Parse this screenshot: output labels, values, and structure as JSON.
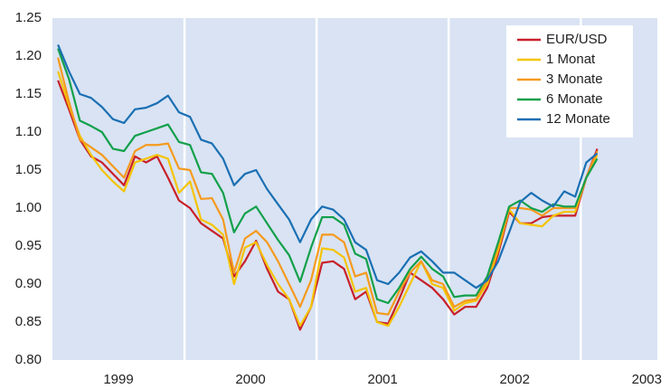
{
  "chart_data": {
    "type": "line",
    "x": [
      1999.042,
      1999.125,
      1999.208,
      1999.292,
      1999.375,
      1999.458,
      1999.542,
      1999.625,
      1999.708,
      1999.792,
      1999.875,
      1999.958,
      2000.042,
      2000.125,
      2000.208,
      2000.292,
      2000.375,
      2000.458,
      2000.542,
      2000.625,
      2000.708,
      2000.792,
      2000.875,
      2000.958,
      2001.042,
      2001.125,
      2001.208,
      2001.292,
      2001.375,
      2001.458,
      2001.542,
      2001.625,
      2001.708,
      2001.792,
      2001.875,
      2001.958,
      2002.042,
      2002.125,
      2002.208,
      2002.292,
      2002.375,
      2002.458,
      2002.542,
      2002.625,
      2002.708,
      2002.792,
      2002.875,
      2002.958,
      2003.042,
      2003.125
    ],
    "series": [
      {
        "name": "EUR/USD",
        "color": "#c8202a",
        "values": [
          1.168,
          1.13,
          1.09,
          1.068,
          1.06,
          1.045,
          1.03,
          1.068,
          1.06,
          1.068,
          1.04,
          1.01,
          1.0,
          0.98,
          0.97,
          0.96,
          0.91,
          0.93,
          0.957,
          0.92,
          0.89,
          0.88,
          0.84,
          0.87,
          0.928,
          0.93,
          0.92,
          0.88,
          0.89,
          0.85,
          0.848,
          0.88,
          0.915,
          0.905,
          0.895,
          0.88,
          0.86,
          0.87,
          0.87,
          0.895,
          0.94,
          0.995,
          0.98,
          0.98,
          0.988,
          0.99,
          0.99,
          0.99,
          1.04,
          1.078
        ]
      },
      {
        "name": "1 Monat",
        "color": "#f5c400",
        "values": [
          1.18,
          1.135,
          1.095,
          1.07,
          1.05,
          1.035,
          1.022,
          1.06,
          1.065,
          1.07,
          1.065,
          1.02,
          1.035,
          0.985,
          0.978,
          0.965,
          0.9,
          0.948,
          0.955,
          0.925,
          0.9,
          0.88,
          0.845,
          0.87,
          0.947,
          0.945,
          0.935,
          0.89,
          0.895,
          0.85,
          0.845,
          0.87,
          0.9,
          0.93,
          0.9,
          0.895,
          0.865,
          0.875,
          0.878,
          0.9,
          0.945,
          0.998,
          0.98,
          0.978,
          0.976,
          0.99,
          0.995,
          0.995,
          1.04,
          1.07
        ]
      },
      {
        "name": "3 Monate",
        "color": "#f59a1d",
        "values": [
          1.198,
          1.14,
          1.09,
          1.08,
          1.07,
          1.055,
          1.04,
          1.075,
          1.083,
          1.083,
          1.085,
          1.052,
          1.05,
          1.012,
          1.013,
          0.985,
          0.915,
          0.96,
          0.97,
          0.955,
          0.93,
          0.9,
          0.87,
          0.905,
          0.965,
          0.965,
          0.955,
          0.91,
          0.915,
          0.862,
          0.86,
          0.89,
          0.915,
          0.93,
          0.905,
          0.9,
          0.87,
          0.878,
          0.88,
          0.905,
          0.95,
          1.0,
          1.0,
          0.998,
          0.99,
          1.0,
          1.0,
          1.0,
          1.04,
          1.075
        ]
      },
      {
        "name": "6 Monate",
        "color": "#12a04a",
        "values": [
          1.21,
          1.17,
          1.115,
          1.108,
          1.1,
          1.078,
          1.075,
          1.095,
          1.1,
          1.105,
          1.11,
          1.087,
          1.083,
          1.047,
          1.045,
          1.02,
          0.968,
          0.993,
          1.002,
          0.98,
          0.958,
          0.938,
          0.903,
          0.948,
          0.988,
          0.988,
          0.978,
          0.94,
          0.933,
          0.88,
          0.875,
          0.895,
          0.92,
          0.936,
          0.92,
          0.91,
          0.883,
          0.885,
          0.885,
          0.91,
          0.955,
          1.002,
          1.01,
          1.0,
          0.995,
          1.005,
          1.002,
          1.002,
          1.04,
          1.065
        ]
      },
      {
        "name": "12 Monate",
        "color": "#1a6fb3",
        "values": [
          1.215,
          1.18,
          1.15,
          1.145,
          1.133,
          1.117,
          1.112,
          1.13,
          1.132,
          1.138,
          1.148,
          1.126,
          1.12,
          1.09,
          1.085,
          1.065,
          1.03,
          1.045,
          1.05,
          1.025,
          1.005,
          0.985,
          0.955,
          0.985,
          1.002,
          0.998,
          0.985,
          0.955,
          0.945,
          0.905,
          0.9,
          0.915,
          0.935,
          0.943,
          0.93,
          0.915,
          0.915,
          0.905,
          0.895,
          0.905,
          0.93,
          0.968,
          1.008,
          1.02,
          1.01,
          1.002,
          1.022,
          1.015,
          1.06,
          1.072
        ]
      }
    ],
    "xlim": [
      1999,
      2003.58
    ],
    "xticks": [
      {
        "value": 1999.5,
        "label": "1999"
      },
      {
        "value": 2000.5,
        "label": "2000"
      },
      {
        "value": 2001.5,
        "label": "2001"
      },
      {
        "value": 2002.5,
        "label": "2002"
      },
      {
        "value": 2003.5,
        "label": "2003"
      }
    ],
    "vlines": [
      2000,
      2001,
      2002,
      2003
    ],
    "ylim": [
      0.8,
      1.25
    ],
    "yticks": [
      {
        "value": 0.8,
        "label": "0.80"
      },
      0.85,
      {
        "value": 0.9,
        "label": "0.90"
      },
      0.95,
      {
        "value": 1,
        "label": "1.00"
      },
      1.05,
      {
        "value": 1.1,
        "label": "1.10"
      },
      1.15,
      {
        "value": 1.2,
        "label": "1.20"
      },
      1.25
    ],
    "legend": "upper right"
  }
}
